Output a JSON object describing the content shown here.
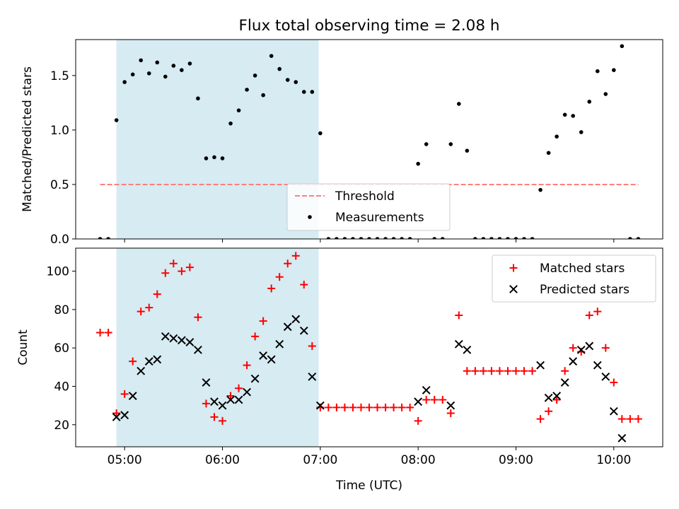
{
  "figure": {
    "title": "Flux total observing time = 2.08 h"
  },
  "colors": {
    "shade": "#add8e6",
    "threshold": "#ff7f7f",
    "measurements": "#000000",
    "matched": "#ff0000",
    "predicted": "#000000"
  },
  "chart_data": [
    {
      "type": "scatter",
      "ylabel": "Matched/Predicted stars",
      "ylim": [
        0,
        1.83
      ],
      "yticks": [
        0.0,
        0.5,
        1.0,
        1.5
      ],
      "ytick_labels": [
        "0.0",
        "0.5",
        "1.0",
        "1.5"
      ],
      "xlim": [
        "04:30",
        "10:30"
      ],
      "xticks": [
        "05:00",
        "06:00",
        "07:00",
        "08:00",
        "09:00",
        "10:00"
      ],
      "shaded_region": [
        "04:55",
        "06:59"
      ],
      "threshold": {
        "name": "Threshold",
        "y": 0.5,
        "x": [
          "04:45",
          "10:15"
        ]
      },
      "legend": {
        "loc": "bottom-center",
        "entries": [
          "Threshold",
          "Measurements"
        ]
      },
      "series": [
        {
          "name": "Measurements",
          "points": [
            [
              "04:45",
              0.0
            ],
            [
              "04:50",
              0.0
            ],
            [
              "04:55",
              1.09
            ],
            [
              "05:00",
              1.44
            ],
            [
              "05:05",
              1.51
            ],
            [
              "05:10",
              1.64
            ],
            [
              "05:15",
              1.52
            ],
            [
              "05:20",
              1.62
            ],
            [
              "05:25",
              1.49
            ],
            [
              "05:30",
              1.59
            ],
            [
              "05:35",
              1.55
            ],
            [
              "05:40",
              1.61
            ],
            [
              "05:45",
              1.29
            ],
            [
              "05:50",
              0.74
            ],
            [
              "05:55",
              0.75
            ],
            [
              "06:00",
              0.74
            ],
            [
              "06:05",
              1.06
            ],
            [
              "06:10",
              1.18
            ],
            [
              "06:15",
              1.37
            ],
            [
              "06:20",
              1.5
            ],
            [
              "06:25",
              1.32
            ],
            [
              "06:30",
              1.68
            ],
            [
              "06:35",
              1.56
            ],
            [
              "06:40",
              1.46
            ],
            [
              "06:45",
              1.44
            ],
            [
              "06:50",
              1.35
            ],
            [
              "06:55",
              1.35
            ],
            [
              "07:00",
              0.97
            ],
            [
              "07:05",
              0.0
            ],
            [
              "07:10",
              0.0
            ],
            [
              "07:15",
              0.0
            ],
            [
              "07:20",
              0.0
            ],
            [
              "07:25",
              0.0
            ],
            [
              "07:30",
              0.0
            ],
            [
              "07:35",
              0.0
            ],
            [
              "07:40",
              0.0
            ],
            [
              "07:45",
              0.0
            ],
            [
              "07:50",
              0.0
            ],
            [
              "07:55",
              0.0
            ],
            [
              "08:00",
              0.69
            ],
            [
              "08:05",
              0.87
            ],
            [
              "08:10",
              0.0
            ],
            [
              "08:15",
              0.0
            ],
            [
              "08:20",
              0.87
            ],
            [
              "08:25",
              1.24
            ],
            [
              "08:30",
              0.81
            ],
            [
              "08:35",
              0.0
            ],
            [
              "08:40",
              0.0
            ],
            [
              "08:45",
              0.0
            ],
            [
              "08:50",
              0.0
            ],
            [
              "08:55",
              0.0
            ],
            [
              "09:00",
              0.0
            ],
            [
              "09:05",
              0.0
            ],
            [
              "09:10",
              0.0
            ],
            [
              "09:15",
              0.45
            ],
            [
              "09:20",
              0.79
            ],
            [
              "09:25",
              0.94
            ],
            [
              "09:30",
              1.14
            ],
            [
              "09:35",
              1.13
            ],
            [
              "09:40",
              0.98
            ],
            [
              "09:45",
              1.26
            ],
            [
              "09:50",
              1.54
            ],
            [
              "09:55",
              1.33
            ],
            [
              "10:00",
              1.55
            ],
            [
              "10:05",
              1.77
            ],
            [
              "10:10",
              0.0
            ],
            [
              "10:15",
              0.0
            ]
          ]
        }
      ]
    },
    {
      "type": "scatter",
      "xlabel": "Time (UTC)",
      "ylabel": "Count",
      "ylim": [
        8.5,
        112
      ],
      "yticks": [
        20,
        40,
        60,
        80,
        100
      ],
      "ytick_labels": [
        "20",
        "40",
        "60",
        "80",
        "100"
      ],
      "xlim": [
        "04:30",
        "10:30"
      ],
      "xticks": [
        "05:00",
        "06:00",
        "07:00",
        "08:00",
        "09:00",
        "10:00"
      ],
      "xtick_labels": [
        "05:00",
        "06:00",
        "07:00",
        "08:00",
        "09:00",
        "10:00"
      ],
      "shaded_region": [
        "04:55",
        "06:59"
      ],
      "legend": {
        "loc": "top-right",
        "entries": [
          "Matched stars",
          "Predicted stars"
        ]
      },
      "series": [
        {
          "name": "Matched stars",
          "marker": "plus",
          "points": [
            [
              "04:45",
              68
            ],
            [
              "04:50",
              68
            ],
            [
              "04:55",
              26
            ],
            [
              "05:00",
              36
            ],
            [
              "05:05",
              53
            ],
            [
              "05:10",
              79
            ],
            [
              "05:15",
              81
            ],
            [
              "05:20",
              88
            ],
            [
              "05:25",
              99
            ],
            [
              "05:30",
              104
            ],
            [
              "05:35",
              100
            ],
            [
              "05:40",
              102
            ],
            [
              "05:45",
              76
            ],
            [
              "05:50",
              31
            ],
            [
              "05:55",
              24
            ],
            [
              "06:00",
              22
            ],
            [
              "06:05",
              35
            ],
            [
              "06:10",
              39
            ],
            [
              "06:15",
              51
            ],
            [
              "06:20",
              66
            ],
            [
              "06:25",
              74
            ],
            [
              "06:30",
              91
            ],
            [
              "06:35",
              97
            ],
            [
              "06:40",
              104
            ],
            [
              "06:45",
              108
            ],
            [
              "06:50",
              93
            ],
            [
              "06:55",
              61
            ],
            [
              "07:00",
              29
            ],
            [
              "07:05",
              29
            ],
            [
              "07:10",
              29
            ],
            [
              "07:15",
              29
            ],
            [
              "07:20",
              29
            ],
            [
              "07:25",
              29
            ],
            [
              "07:30",
              29
            ],
            [
              "07:35",
              29
            ],
            [
              "07:40",
              29
            ],
            [
              "07:45",
              29
            ],
            [
              "07:50",
              29
            ],
            [
              "07:55",
              29
            ],
            [
              "08:00",
              22
            ],
            [
              "08:05",
              33
            ],
            [
              "08:10",
              33
            ],
            [
              "08:15",
              33
            ],
            [
              "08:20",
              26
            ],
            [
              "08:25",
              77
            ],
            [
              "08:30",
              48
            ],
            [
              "08:35",
              48
            ],
            [
              "08:40",
              48
            ],
            [
              "08:45",
              48
            ],
            [
              "08:50",
              48
            ],
            [
              "08:55",
              48
            ],
            [
              "09:00",
              48
            ],
            [
              "09:05",
              48
            ],
            [
              "09:10",
              48
            ],
            [
              "09:15",
              23
            ],
            [
              "09:20",
              27
            ],
            [
              "09:25",
              33
            ],
            [
              "09:30",
              48
            ],
            [
              "09:35",
              60
            ],
            [
              "09:40",
              58
            ],
            [
              "09:45",
              77
            ],
            [
              "09:50",
              79
            ],
            [
              "09:55",
              60
            ],
            [
              "10:00",
              42
            ],
            [
              "10:05",
              23
            ],
            [
              "10:10",
              23
            ],
            [
              "10:15",
              23
            ]
          ]
        },
        {
          "name": "Predicted stars",
          "marker": "x",
          "points": [
            [
              "04:55",
              24
            ],
            [
              "05:00",
              25
            ],
            [
              "05:05",
              35
            ],
            [
              "05:10",
              48
            ],
            [
              "05:15",
              53
            ],
            [
              "05:20",
              54
            ],
            [
              "05:25",
              66
            ],
            [
              "05:30",
              65
            ],
            [
              "05:35",
              64
            ],
            [
              "05:40",
              63
            ],
            [
              "05:45",
              59
            ],
            [
              "05:50",
              42
            ],
            [
              "05:55",
              32
            ],
            [
              "06:00",
              30
            ],
            [
              "06:05",
              33
            ],
            [
              "06:10",
              33
            ],
            [
              "06:15",
              37
            ],
            [
              "06:20",
              44
            ],
            [
              "06:25",
              56
            ],
            [
              "06:30",
              54
            ],
            [
              "06:35",
              62
            ],
            [
              "06:40",
              71
            ],
            [
              "06:45",
              75
            ],
            [
              "06:50",
              69
            ],
            [
              "06:55",
              45
            ],
            [
              "07:00",
              30
            ],
            [
              "08:00",
              32
            ],
            [
              "08:05",
              38
            ],
            [
              "08:20",
              30
            ],
            [
              "08:25",
              62
            ],
            [
              "08:30",
              59
            ],
            [
              "09:15",
              51
            ],
            [
              "09:20",
              34
            ],
            [
              "09:25",
              35
            ],
            [
              "09:30",
              42
            ],
            [
              "09:35",
              53
            ],
            [
              "09:40",
              59
            ],
            [
              "09:45",
              61
            ],
            [
              "09:50",
              51
            ],
            [
              "09:55",
              45
            ],
            [
              "10:00",
              27
            ],
            [
              "10:05",
              13
            ]
          ]
        }
      ]
    }
  ]
}
